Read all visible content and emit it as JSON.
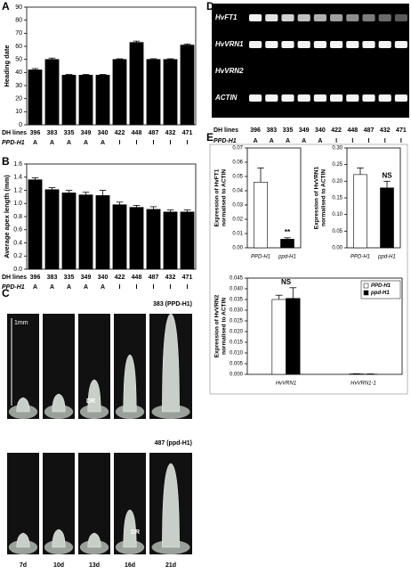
{
  "chart_data": [
    {
      "type": "bar",
      "label": "A",
      "y_label": [
        "Heading date"
      ],
      "categories": [
        "396",
        "383",
        "335",
        "349",
        "340",
        "422",
        "448",
        "487",
        "432",
        "471"
      ],
      "values": [
        42,
        50,
        38,
        38,
        38,
        50,
        63,
        50,
        50,
        61
      ],
      "errors": [
        1,
        1,
        0.5,
        0.5,
        0.5,
        0.5,
        1,
        0.5,
        0.5,
        0.8
      ],
      "color": "#000000",
      "ylim": [
        0,
        90
      ],
      "yticks": [
        0,
        10,
        20,
        30,
        40,
        50,
        60,
        70,
        80,
        90
      ],
      "x_label": "DH lines",
      "row_label": "PPD-H1",
      "genotype": [
        "A",
        "A",
        "A",
        "A",
        "A",
        "I",
        "I",
        "I",
        "I",
        "I"
      ]
    },
    {
      "type": "bar",
      "label": "B",
      "y_label": [
        "Average apex length (mm)"
      ],
      "categories": [
        "396",
        "383",
        "335",
        "349",
        "340",
        "422",
        "448",
        "487",
        "432",
        "471"
      ],
      "values": [
        1.36,
        1.21,
        1.16,
        1.13,
        1.12,
        0.98,
        0.94,
        0.91,
        0.87,
        0.87
      ],
      "errors": [
        0.03,
        0.03,
        0.04,
        0.04,
        0.08,
        0.04,
        0.03,
        0.04,
        0.03,
        0.03
      ],
      "color": "#000000",
      "ylim": [
        0,
        1.6
      ],
      "yticks": [
        {
          "value": 0,
          "label": "0.0"
        },
        0.2,
        0.4,
        0.6,
        0.8,
        {
          "value": 1,
          "label": "1.0"
        },
        1.2,
        1.4,
        1.6
      ],
      "x_label": "DH lines",
      "row_label": "PPD-H1",
      "genotype": [
        "A",
        "A",
        "A",
        "A",
        "A",
        "I",
        "I",
        "I",
        "I",
        "I"
      ]
    },
    {
      "type": "bar",
      "y_label": [
        "Expression of HvFT1",
        "normalised to ACTIN"
      ],
      "categories": [
        "PPD-H1",
        "ppd-H1"
      ],
      "values": [
        0.046,
        0.006
      ],
      "errors": [
        0.01,
        0.001
      ],
      "colors": [
        "#ffffff",
        "#000000"
      ],
      "annotation": "**",
      "ylim": [
        0,
        0.07
      ],
      "yticks": [
        {
          "value": 0,
          "label": "0.00"
        },
        {
          "value": 0.01,
          "label": "0.01"
        },
        {
          "value": 0.02,
          "label": "0.02"
        },
        {
          "value": 0.03,
          "label": "0.03"
        },
        {
          "value": 0.04,
          "label": "0.04"
        },
        {
          "value": 0.05,
          "label": "0.05"
        },
        {
          "value": 0.06,
          "label": "0.06"
        },
        {
          "value": 0.07,
          "label": "0.07"
        }
      ]
    },
    {
      "type": "bar",
      "y_label": [
        "Expression of HvVRN1",
        "normalised to ACTIN"
      ],
      "categories": [
        "PPD-H1",
        "ppd-H1"
      ],
      "values": [
        0.22,
        0.18
      ],
      "errors": [
        0.02,
        0.02
      ],
      "colors": [
        "#ffffff",
        "#000000"
      ],
      "annotation": "NS",
      "ylim": [
        0,
        0.3
      ],
      "yticks": [
        {
          "value": 0,
          "label": "0.00"
        },
        {
          "value": 0.05,
          "label": "0.05"
        },
        {
          "value": 0.1,
          "label": "0.10"
        },
        {
          "value": 0.15,
          "label": "0.15"
        },
        {
          "value": 0.2,
          "label": "0.20"
        },
        {
          "value": 0.25,
          "label": "0.25"
        },
        {
          "value": 0.3,
          "label": "0.30"
        }
      ]
    },
    {
      "type": "grouped_bar",
      "y_label": [
        "Expression of HvVRN2",
        "normalised to ACTIN"
      ],
      "categories": [
        "HvVRN1",
        "HvVRN1-1"
      ],
      "series": [
        {
          "name": "PPD-H1",
          "color": "#ffffff",
          "values": [
            0.035,
            0.0002
          ],
          "errors": [
            0.002,
            0.0001
          ]
        },
        {
          "name": "ppd-H1",
          "color": "#000000",
          "values": [
            0.0355,
            0.0001
          ],
          "errors": [
            0.005,
            0.0001
          ]
        }
      ],
      "annotation": "NS",
      "legend": "top-right",
      "ylim": [
        0,
        0.045
      ],
      "yticks": [
        {
          "value": 0,
          "label": "0.000"
        },
        {
          "value": 0.005,
          "label": "0.005"
        },
        {
          "value": 0.01,
          "label": "0.010"
        },
        {
          "value": 0.015,
          "label": "0.015"
        },
        {
          "value": 0.02,
          "label": "0.020"
        },
        {
          "value": 0.025,
          "label": "0.025"
        },
        {
          "value": 0.03,
          "label": "0.030"
        },
        {
          "value": 0.035,
          "label": "0.035"
        },
        {
          "value": 0.04,
          "label": "0.040"
        },
        {
          "value": 0.045,
          "label": "0.045"
        }
      ]
    }
  ],
  "photo_panel": {
    "label": "C",
    "top_title": "383 (PPD-H1)",
    "bottom_title": "487 (ppd-H1)",
    "scale": "1mm",
    "marker": "DR",
    "days": [
      "7d",
      "10d",
      "13d",
      "16d",
      "21d"
    ]
  },
  "gel_panel": {
    "label": "D",
    "genes": [
      "HvFT1",
      "HvVRN1",
      "HvVRN2",
      "ACTIN"
    ],
    "x_label": "DH lines",
    "row_label": "PPD-H1",
    "lanes": [
      "396",
      "383",
      "335",
      "349",
      "340",
      "422",
      "448",
      "487",
      "432",
      "471"
    ],
    "genotype": [
      "A",
      "A",
      "A",
      "A",
      "A",
      "I",
      "I",
      "I",
      "I",
      "I"
    ]
  },
  "e_label": "E"
}
